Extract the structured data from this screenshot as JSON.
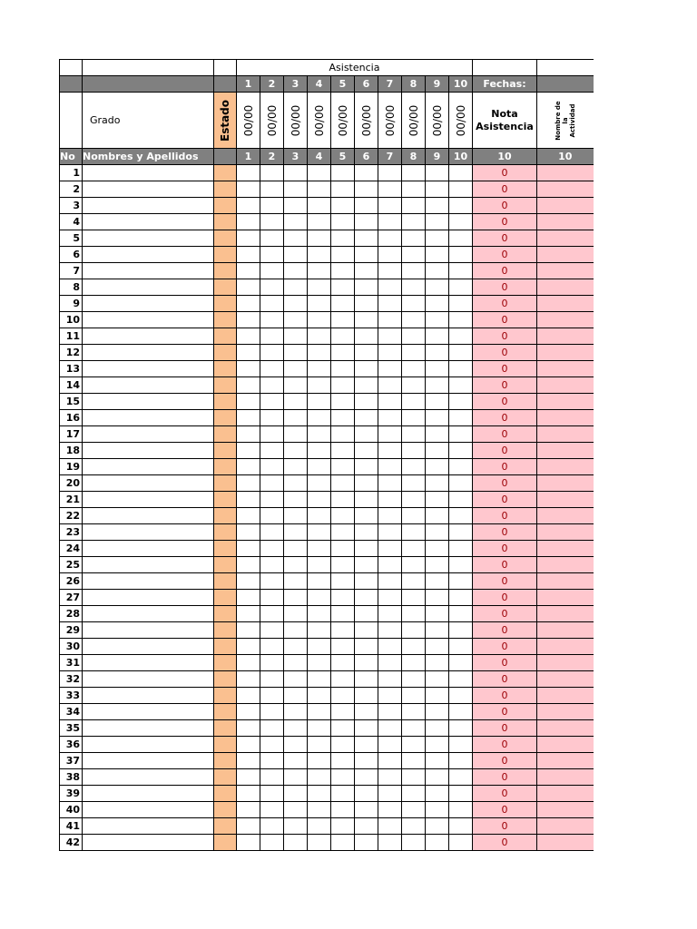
{
  "sheet": {
    "title": "Asistencia",
    "dates_label": "Fechas:",
    "grado": "Grado",
    "estado": "Estado",
    "date_placeholder": "00/00",
    "nota_asistencia": "Nota Asistencia",
    "nombre_actividad": "Nombre de la Actividad",
    "col_no": "No",
    "col_names": "Nombres  y Apellidos",
    "sessions": [
      "1",
      "2",
      "3",
      "4",
      "5",
      "6",
      "7",
      "8",
      "9",
      "10"
    ],
    "nota_max": "10",
    "actividad_max": "10",
    "row_count": 42,
    "default_grade": "0"
  },
  "colors": {
    "header_gray": "#808080",
    "estado_orange": "#fac090",
    "grade_pink": "#ffc7ce",
    "grade_text": "#9c0006"
  }
}
